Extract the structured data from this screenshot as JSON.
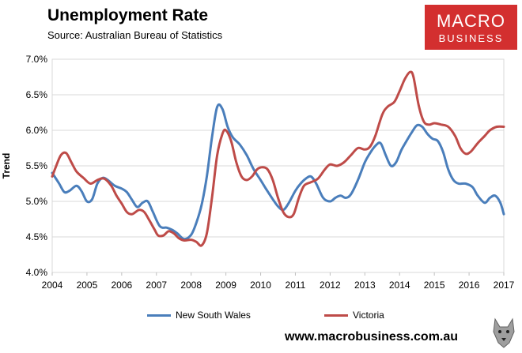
{
  "header": {
    "title": "Unemployment Rate",
    "source": "Source: Australian Bureau of Statistics"
  },
  "logo": {
    "line1": "MACRO",
    "line2": "BUSINESS"
  },
  "footer": {
    "url": "www.macrobusiness.com.au"
  },
  "colors": {
    "nsw": "#4a7ebb",
    "vic": "#be4b48",
    "logo_bg": "#d32f2f"
  },
  "chart_data": {
    "type": "line",
    "title": "Unemployment Rate",
    "subtitle": "Source: Australian Bureau of Statistics",
    "xlabel": "",
    "ylabel": "Trend",
    "xlim": [
      2004,
      2017
    ],
    "ylim": [
      4.0,
      7.0
    ],
    "x_ticks": [
      2004,
      2005,
      2006,
      2007,
      2008,
      2009,
      2010,
      2011,
      2012,
      2013,
      2014,
      2015,
      2016,
      2017
    ],
    "y_ticks": [
      4.0,
      4.5,
      5.0,
      5.5,
      6.0,
      6.5,
      7.0
    ],
    "y_tick_labels": [
      "4.0%",
      "4.5%",
      "5.0%",
      "5.5%",
      "6.0%",
      "6.5%",
      "7.0%"
    ],
    "grid": "horizontal",
    "legend": "bottom",
    "series": [
      {
        "name": "New South Wales",
        "color": "#4a7ebb",
        "points": [
          [
            2004.0,
            5.4
          ],
          [
            2004.2,
            5.25
          ],
          [
            2004.35,
            5.13
          ],
          [
            2004.5,
            5.15
          ],
          [
            2004.7,
            5.22
          ],
          [
            2004.85,
            5.14
          ],
          [
            2005.0,
            5.0
          ],
          [
            2005.15,
            5.03
          ],
          [
            2005.3,
            5.25
          ],
          [
            2005.45,
            5.33
          ],
          [
            2005.6,
            5.3
          ],
          [
            2005.8,
            5.22
          ],
          [
            2006.0,
            5.18
          ],
          [
            2006.15,
            5.13
          ],
          [
            2006.3,
            5.02
          ],
          [
            2006.45,
            4.92
          ],
          [
            2006.6,
            4.98
          ],
          [
            2006.75,
            5.0
          ],
          [
            2006.9,
            4.85
          ],
          [
            2007.1,
            4.65
          ],
          [
            2007.3,
            4.63
          ],
          [
            2007.45,
            4.6
          ],
          [
            2007.6,
            4.55
          ],
          [
            2007.8,
            4.47
          ],
          [
            2008.0,
            4.53
          ],
          [
            2008.15,
            4.7
          ],
          [
            2008.3,
            4.95
          ],
          [
            2008.45,
            5.35
          ],
          [
            2008.6,
            5.9
          ],
          [
            2008.75,
            6.33
          ],
          [
            2008.9,
            6.3
          ],
          [
            2009.05,
            6.05
          ],
          [
            2009.2,
            5.9
          ],
          [
            2009.4,
            5.8
          ],
          [
            2009.6,
            5.65
          ],
          [
            2009.8,
            5.45
          ],
          [
            2010.0,
            5.3
          ],
          [
            2010.15,
            5.18
          ],
          [
            2010.35,
            5.03
          ],
          [
            2010.5,
            4.93
          ],
          [
            2010.65,
            4.88
          ],
          [
            2010.8,
            4.97
          ],
          [
            2011.0,
            5.15
          ],
          [
            2011.15,
            5.25
          ],
          [
            2011.3,
            5.32
          ],
          [
            2011.45,
            5.35
          ],
          [
            2011.6,
            5.25
          ],
          [
            2011.8,
            5.05
          ],
          [
            2012.0,
            5.0
          ],
          [
            2012.15,
            5.05
          ],
          [
            2012.3,
            5.08
          ],
          [
            2012.45,
            5.05
          ],
          [
            2012.6,
            5.1
          ],
          [
            2012.8,
            5.3
          ],
          [
            2013.0,
            5.55
          ],
          [
            2013.15,
            5.68
          ],
          [
            2013.3,
            5.78
          ],
          [
            2013.45,
            5.82
          ],
          [
            2013.6,
            5.65
          ],
          [
            2013.75,
            5.5
          ],
          [
            2013.9,
            5.55
          ],
          [
            2014.05,
            5.72
          ],
          [
            2014.2,
            5.85
          ],
          [
            2014.35,
            5.97
          ],
          [
            2014.5,
            6.07
          ],
          [
            2014.65,
            6.05
          ],
          [
            2014.8,
            5.95
          ],
          [
            2014.95,
            5.88
          ],
          [
            2015.1,
            5.85
          ],
          [
            2015.25,
            5.7
          ],
          [
            2015.4,
            5.45
          ],
          [
            2015.55,
            5.3
          ],
          [
            2015.7,
            5.25
          ],
          [
            2015.9,
            5.25
          ],
          [
            2016.1,
            5.2
          ],
          [
            2016.25,
            5.08
          ],
          [
            2016.45,
            4.98
          ],
          [
            2016.6,
            5.05
          ],
          [
            2016.75,
            5.08
          ],
          [
            2016.9,
            4.98
          ],
          [
            2017.0,
            4.82
          ]
        ]
      },
      {
        "name": "Victoria",
        "color": "#be4b48",
        "points": [
          [
            2004.0,
            5.35
          ],
          [
            2004.1,
            5.48
          ],
          [
            2004.25,
            5.65
          ],
          [
            2004.4,
            5.68
          ],
          [
            2004.55,
            5.55
          ],
          [
            2004.7,
            5.42
          ],
          [
            2004.9,
            5.33
          ],
          [
            2005.1,
            5.25
          ],
          [
            2005.3,
            5.3
          ],
          [
            2005.5,
            5.32
          ],
          [
            2005.7,
            5.22
          ],
          [
            2005.85,
            5.08
          ],
          [
            2006.0,
            4.97
          ],
          [
            2006.15,
            4.85
          ],
          [
            2006.3,
            4.82
          ],
          [
            2006.5,
            4.88
          ],
          [
            2006.65,
            4.85
          ],
          [
            2006.8,
            4.73
          ],
          [
            2006.95,
            4.6
          ],
          [
            2007.05,
            4.52
          ],
          [
            2007.2,
            4.52
          ],
          [
            2007.35,
            4.58
          ],
          [
            2007.5,
            4.55
          ],
          [
            2007.65,
            4.48
          ],
          [
            2007.8,
            4.45
          ],
          [
            2008.0,
            4.46
          ],
          [
            2008.15,
            4.43
          ],
          [
            2008.3,
            4.38
          ],
          [
            2008.45,
            4.55
          ],
          [
            2008.6,
            5.05
          ],
          [
            2008.75,
            5.65
          ],
          [
            2008.9,
            5.95
          ],
          [
            2009.0,
            6.0
          ],
          [
            2009.15,
            5.85
          ],
          [
            2009.3,
            5.55
          ],
          [
            2009.45,
            5.35
          ],
          [
            2009.6,
            5.3
          ],
          [
            2009.75,
            5.35
          ],
          [
            2009.9,
            5.45
          ],
          [
            2010.05,
            5.48
          ],
          [
            2010.2,
            5.45
          ],
          [
            2010.35,
            5.3
          ],
          [
            2010.5,
            5.05
          ],
          [
            2010.65,
            4.85
          ],
          [
            2010.8,
            4.78
          ],
          [
            2010.95,
            4.82
          ],
          [
            2011.1,
            5.05
          ],
          [
            2011.25,
            5.22
          ],
          [
            2011.45,
            5.27
          ],
          [
            2011.65,
            5.32
          ],
          [
            2011.85,
            5.45
          ],
          [
            2012.0,
            5.52
          ],
          [
            2012.2,
            5.5
          ],
          [
            2012.4,
            5.55
          ],
          [
            2012.6,
            5.65
          ],
          [
            2012.8,
            5.75
          ],
          [
            2013.0,
            5.73
          ],
          [
            2013.15,
            5.77
          ],
          [
            2013.3,
            5.92
          ],
          [
            2013.5,
            6.22
          ],
          [
            2013.65,
            6.33
          ],
          [
            2013.85,
            6.4
          ],
          [
            2014.0,
            6.55
          ],
          [
            2014.15,
            6.72
          ],
          [
            2014.3,
            6.82
          ],
          [
            2014.4,
            6.75
          ],
          [
            2014.55,
            6.35
          ],
          [
            2014.7,
            6.12
          ],
          [
            2014.85,
            6.08
          ],
          [
            2015.0,
            6.1
          ],
          [
            2015.2,
            6.08
          ],
          [
            2015.4,
            6.05
          ],
          [
            2015.6,
            5.92
          ],
          [
            2015.75,
            5.75
          ],
          [
            2015.9,
            5.67
          ],
          [
            2016.05,
            5.7
          ],
          [
            2016.25,
            5.82
          ],
          [
            2016.45,
            5.92
          ],
          [
            2016.6,
            6.0
          ],
          [
            2016.8,
            6.05
          ],
          [
            2017.0,
            6.05
          ]
        ]
      }
    ]
  }
}
